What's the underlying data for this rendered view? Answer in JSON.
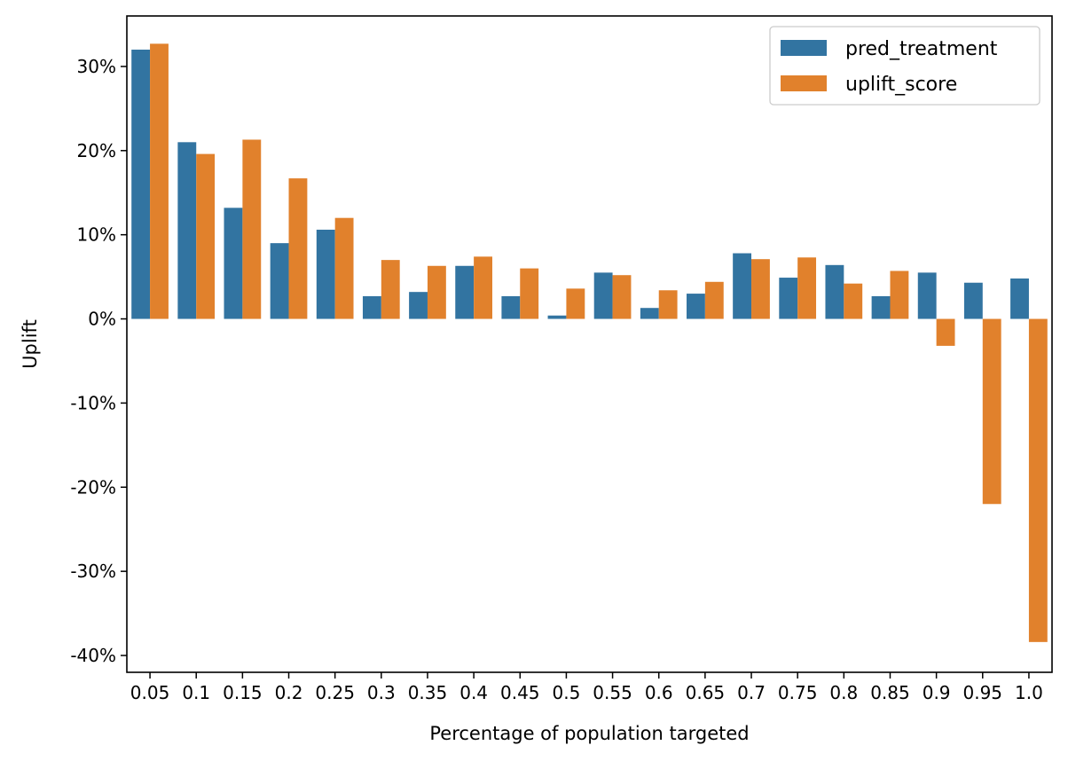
{
  "chart_data": {
    "type": "bar",
    "xlabel": "Percentage of population targeted",
    "ylabel": "Uplift",
    "categories": [
      "0.05",
      "0.1",
      "0.15",
      "0.2",
      "0.25",
      "0.3",
      "0.35",
      "0.4",
      "0.45",
      "0.5",
      "0.55",
      "0.6",
      "0.65",
      "0.7",
      "0.75",
      "0.8",
      "0.85",
      "0.9",
      "0.95",
      "1.0"
    ],
    "series": [
      {
        "name": "pred_treatment",
        "color": "#3274a1",
        "values": [
          32.0,
          21.0,
          13.2,
          9.0,
          10.6,
          2.7,
          3.2,
          6.3,
          2.7,
          0.4,
          5.5,
          1.3,
          3.0,
          7.8,
          4.9,
          6.4,
          2.7,
          5.5,
          4.3,
          4.8
        ]
      },
      {
        "name": "uplift_score",
        "color": "#e1812c",
        "values": [
          32.7,
          19.6,
          21.3,
          16.7,
          12.0,
          7.0,
          6.3,
          7.4,
          6.0,
          3.6,
          5.2,
          3.4,
          4.4,
          7.1,
          7.3,
          4.2,
          5.7,
          -3.2,
          -22.0,
          -38.4
        ]
      }
    ],
    "y_unit": "%",
    "yticks": [
      30,
      20,
      10,
      0,
      -10,
      -20,
      -30,
      -40
    ],
    "ytick_labels": [
      "30%",
      "20%",
      "10%",
      "0%",
      "-10%",
      "-20%",
      "-30%",
      "-40%"
    ],
    "ylim": [
      -42,
      36
    ],
    "grid": false,
    "legend_position": "top-right"
  }
}
